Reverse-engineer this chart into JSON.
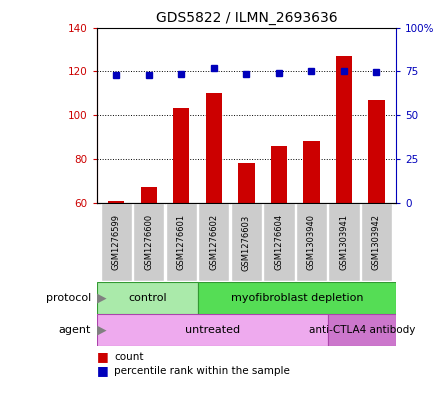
{
  "title": "GDS5822 / ILMN_2693636",
  "samples": [
    "GSM1276599",
    "GSM1276600",
    "GSM1276601",
    "GSM1276602",
    "GSM1276603",
    "GSM1276604",
    "GSM1303940",
    "GSM1303941",
    "GSM1303942"
  ],
  "counts": [
    60.5,
    67.0,
    103.0,
    110.0,
    78.0,
    86.0,
    88.0,
    127.0,
    107.0
  ],
  "percentiles": [
    73.0,
    73.0,
    73.5,
    77.0,
    73.5,
    74.0,
    75.0,
    75.0,
    74.5
  ],
  "ylim_left": [
    60,
    140
  ],
  "ylim_right": [
    0,
    100
  ],
  "yticks_left": [
    60,
    80,
    100,
    120,
    140
  ],
  "yticks_right": [
    0,
    25,
    50,
    75,
    100
  ],
  "bar_color": "#cc0000",
  "dot_color": "#0000bb",
  "protocol_control_samples": 3,
  "protocol_labels": [
    "control",
    "myofibroblast depletion"
  ],
  "agent_untreated_samples": 7,
  "agent_labels": [
    "untreated",
    "anti-CTLA4 antibody"
  ],
  "protocol_color_control": "#aaeaaa",
  "protocol_color_myo": "#55dd55",
  "agent_color_untreated": "#eeaaee",
  "agent_color_anti": "#cc77cc",
  "sample_box_color": "#cccccc",
  "legend_count_color": "#cc0000",
  "legend_pct_color": "#0000bb"
}
